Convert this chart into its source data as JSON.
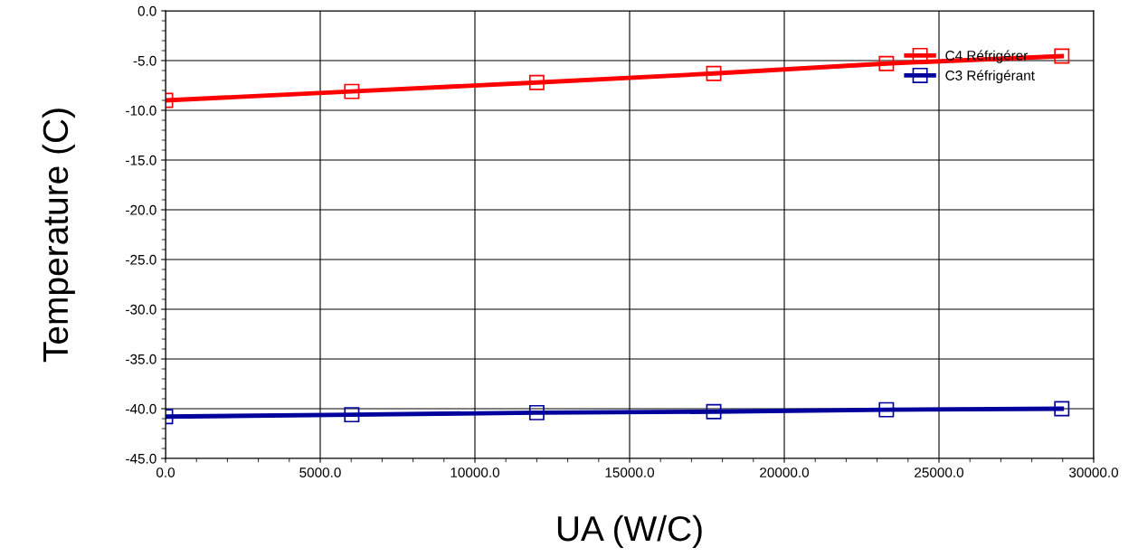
{
  "chart_data": {
    "type": "line",
    "xlabel": "UA (W/C)",
    "ylabel": "Temperature (C)",
    "x": [
      0,
      6020,
      12000,
      17720,
      23300,
      28970
    ],
    "series": [
      {
        "name": "C4 Réfrigérer",
        "color": "#ff0000",
        "values": [
          -9.0,
          -8.1,
          -7.2,
          -6.3,
          -5.3,
          -4.55
        ]
      },
      {
        "name": "C3 Réfrigérant",
        "color": "#00009c",
        "values": [
          -40.8,
          -40.6,
          -40.4,
          -40.3,
          -40.1,
          -40.0
        ]
      }
    ],
    "xlim": [
      0,
      30000
    ],
    "xticks": [
      {
        "value": 0,
        "label": "0.0"
      },
      {
        "value": 5000,
        "label": "5000.0"
      },
      {
        "value": 10000,
        "label": "10000.0"
      },
      {
        "value": 15000,
        "label": "15000.0"
      },
      {
        "value": 20000,
        "label": "20000.0"
      },
      {
        "value": 25000,
        "label": "25000.0"
      },
      {
        "value": 30000,
        "label": "30000.0"
      }
    ],
    "ylim": [
      -45,
      0
    ],
    "yticks": [
      {
        "value": -45,
        "label": "-45.0"
      },
      {
        "value": -40,
        "label": "-40.0"
      },
      {
        "value": -35,
        "label": "-35.0"
      },
      {
        "value": -30,
        "label": "-30.0"
      },
      {
        "value": -25,
        "label": "-25.0"
      },
      {
        "value": -20,
        "label": "-20.0"
      },
      {
        "value": -15,
        "label": "-15.0"
      },
      {
        "value": -10,
        "label": "-10.0"
      },
      {
        "value": -5,
        "label": "-5.0"
      },
      {
        "value": 0,
        "label": "0.0"
      }
    ],
    "grid": true,
    "legend": "top right",
    "marker": "square",
    "line_style": "solid"
  }
}
